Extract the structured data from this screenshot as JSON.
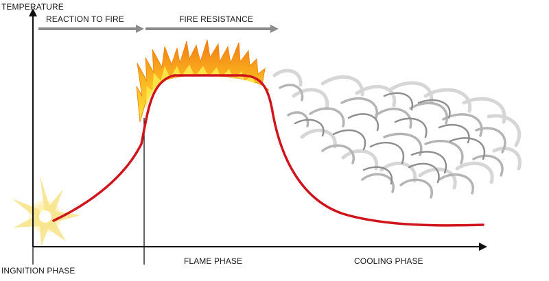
{
  "axis": {
    "y_label": "TEMPERATURE"
  },
  "top_bands": {
    "reaction": "REACTION TO FIRE",
    "resistance": "FIRE RESISTANCE"
  },
  "phases": {
    "ignition": "INGNITION PHASE",
    "flame": "FLAME PHASE",
    "cooling": "COOLING PHASE"
  },
  "colors": {
    "axis": "#111111",
    "curve": "#d0141c",
    "band_arrow": "#8c8c8c",
    "flame_outer": "#f39a1b",
    "flame_inner": "#ffd21f",
    "smoke": "#9a9a9a",
    "spark": "#f6d64a"
  }
}
